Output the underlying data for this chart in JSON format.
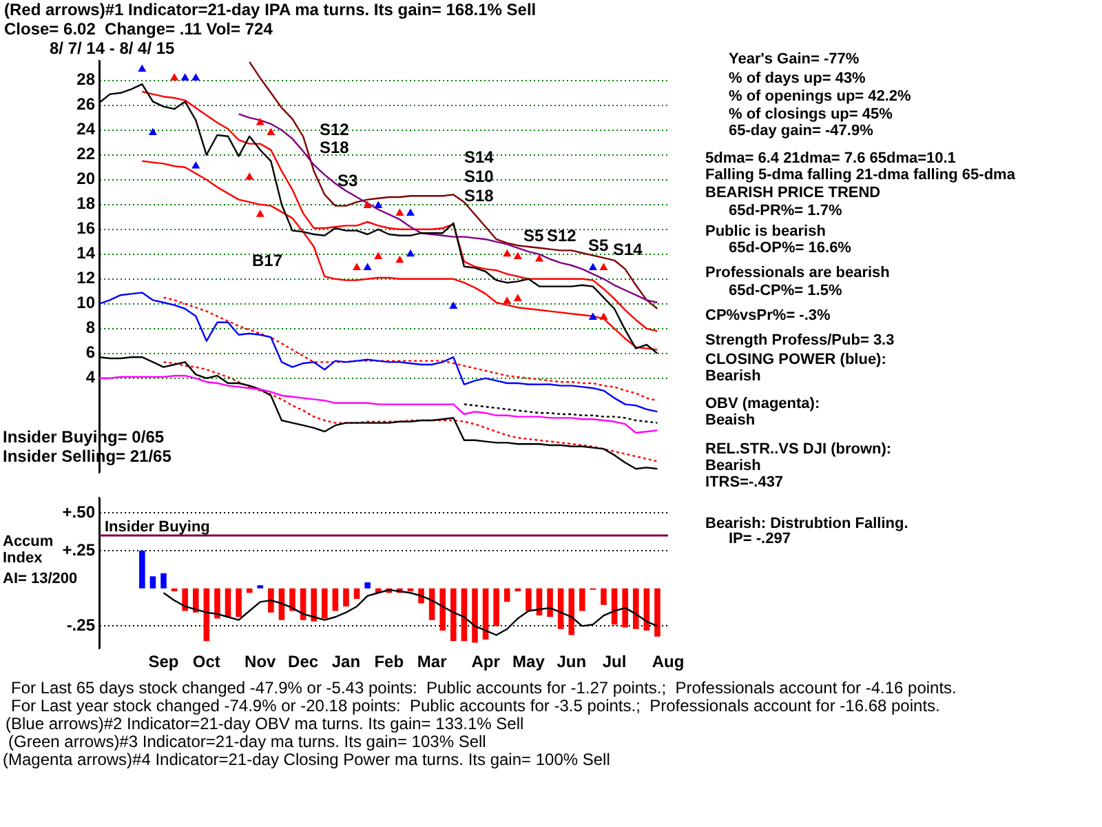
{
  "chart_data": [
    {
      "type": "line",
      "title": "(Red arrows)#1 Indicator=21-day IPA ma turns. Its gain= 168.1% Sell",
      "subtitle": "Close= 6.02  Change= .11 Vol= 724",
      "categories": [
        null,
        null,
        null,
        null,
        null,
        null,
        null,
        null,
        null,
        null,
        null,
        null,
        null,
        null,
        null,
        null,
        null,
        null,
        null,
        null,
        null,
        null,
        null,
        null,
        null,
        null,
        null,
        null,
        null,
        null,
        null,
        null,
        null,
        null,
        null,
        null,
        null,
        null,
        null,
        null,
        null,
        null,
        null,
        null,
        null,
        null,
        null,
        null,
        null,
        null,
        null,
        null,
        null,
        null
      ],
      "ylim": [
        -3.6,
        29.6
      ],
      "yticks": [
        4,
        6,
        8,
        10,
        12,
        14,
        16,
        18,
        20,
        22,
        24,
        26,
        28
      ],
      "grid": "y",
      "tick_labels": "y",
      "series": [
        {
          "color": "#000000",
          "values": [
            26.2,
            26.9,
            27.0,
            27.3,
            27.7,
            26.3,
            25.9,
            25.7,
            26.3,
            24.8,
            22.0,
            23.6,
            23.5,
            21.9,
            23.5,
            22.4,
            21.5,
            18.0,
            15.9,
            15.8,
            15.6,
            15.5,
            16.1,
            15.9,
            15.9,
            15.6,
            16.0,
            15.6,
            15.5,
            15.5,
            15.7,
            15.7,
            15.7,
            16.5,
            13.0,
            12.9,
            12.6,
            11.9,
            11.7,
            11.8,
            12.0,
            11.4,
            11.4,
            11.4,
            11.4,
            11.5,
            11.4,
            10.5,
            9.6,
            7.9,
            6.4,
            6.7,
            6.0,
            null
          ]
        },
        {
          "color": "#800080",
          "values": [
            null,
            null,
            null,
            null,
            null,
            null,
            null,
            null,
            null,
            null,
            null,
            null,
            null,
            25.3,
            25.0,
            24.8,
            24.5,
            24.0,
            23.3,
            22.3,
            21.2,
            20.4,
            19.7,
            19.1,
            18.6,
            18.1,
            17.6,
            17.2,
            16.8,
            16.2,
            15.7,
            15.6,
            15.5,
            15.4,
            15.4,
            15.3,
            15.2,
            15.0,
            14.8,
            14.5,
            14.2,
            14.0,
            13.6,
            13.3,
            13.1,
            12.8,
            12.4,
            12.0,
            11.5,
            11.1,
            10.7,
            10.3,
            10.1,
            null
          ]
        },
        {
          "color": "#ff0000",
          "values": [
            null,
            null,
            null,
            null,
            27.1,
            26.9,
            26.7,
            26.6,
            26.4,
            25.8,
            25.2,
            24.6,
            24.1,
            23.2,
            22.9,
            22.9,
            22.4,
            20.7,
            19.2,
            17.3,
            16.1,
            16.1,
            16.2,
            16.3,
            16.3,
            16.6,
            16.3,
            16.1,
            16.0,
            16.0,
            16.0,
            16.0,
            16.1,
            16.4,
            13.4,
            13.0,
            12.8,
            12.7,
            12.4,
            12.2,
            12.0,
            12.0,
            12.0,
            12.0,
            12.0,
            12.0,
            11.9,
            11.2,
            10.4,
            9.5,
            8.7,
            8.0,
            7.8,
            null
          ]
        },
        {
          "color": "#ff0000",
          "values": [
            null,
            null,
            null,
            null,
            21.5,
            21.4,
            21.3,
            21.1,
            21.0,
            20.5,
            20.0,
            19.4,
            18.9,
            18.4,
            18.2,
            18.0,
            17.9,
            17.4,
            16.9,
            15.8,
            14.6,
            12.2,
            12.0,
            11.9,
            11.9,
            12.0,
            12.1,
            12.1,
            12.0,
            12.0,
            12.0,
            12.0,
            12.0,
            12.0,
            11.7,
            11.3,
            10.8,
            10.1,
            9.9,
            9.7,
            9.6,
            9.5,
            9.4,
            9.3,
            9.2,
            9.1,
            9.0,
            8.8,
            8.0,
            7.2,
            6.5,
            6.4,
            6.3,
            null
          ]
        },
        {
          "color": "#800000",
          "values": [
            null,
            null,
            null,
            null,
            null,
            null,
            null,
            null,
            null,
            null,
            null,
            null,
            null,
            null,
            29.5,
            28.2,
            27.0,
            25.8,
            24.9,
            23.5,
            20.7,
            18.8,
            17.9,
            17.9,
            18.2,
            18.4,
            18.5,
            18.6,
            18.6,
            18.7,
            18.7,
            18.7,
            18.7,
            18.8,
            18.2,
            17.2,
            16.2,
            15.2,
            14.9,
            14.7,
            14.6,
            14.5,
            14.4,
            14.3,
            14.3,
            14.1,
            13.9,
            13.7,
            13.5,
            12.8,
            11.5,
            10.3,
            9.6,
            null
          ]
        },
        {
          "color": "#0000ff",
          "values": [
            10.0,
            10.3,
            10.7,
            10.8,
            10.9,
            10.3,
            10.1,
            9.9,
            9.6,
            9.0,
            7.0,
            8.5,
            8.5,
            7.5,
            7.6,
            7.5,
            7.3,
            5.3,
            4.9,
            5.2,
            5.3,
            4.7,
            5.4,
            5.3,
            5.4,
            5.5,
            5.4,
            5.3,
            5.3,
            5.2,
            5.1,
            5.1,
            5.3,
            5.7,
            3.5,
            3.8,
            4.0,
            3.8,
            3.6,
            3.6,
            3.5,
            3.5,
            3.5,
            3.4,
            3.4,
            3.3,
            3.2,
            3.0,
            2.4,
            1.9,
            1.8,
            1.5,
            1.3,
            null
          ]
        },
        {
          "color": "#ff0000",
          "line_style": "dotted",
          "values": [
            null,
            null,
            null,
            null,
            null,
            null,
            10.5,
            10.3,
            10.0,
            9.7,
            9.4,
            9.0,
            8.6,
            8.2,
            7.9,
            7.6,
            7.3,
            6.8,
            6.3,
            5.8,
            5.3,
            5.3,
            5.3,
            5.3,
            5.4,
            5.4,
            5.4,
            5.4,
            5.4,
            5.4,
            5.4,
            5.4,
            5.4,
            5.2,
            5.0,
            4.8,
            4.6,
            4.4,
            4.2,
            4.1,
            4.0,
            3.9,
            3.8,
            3.7,
            3.7,
            3.6,
            3.6,
            3.4,
            3.3,
            3.0,
            2.8,
            2.4,
            2.2,
            null
          ]
        },
        {
          "color": "#ff00ff",
          "values": [
            4.0,
            4.0,
            4.1,
            4.1,
            4.1,
            4.1,
            4.1,
            4.2,
            4.2,
            4.0,
            3.7,
            3.6,
            3.4,
            3.3,
            3.2,
            3.1,
            2.9,
            2.6,
            2.5,
            2.4,
            2.3,
            2.2,
            2.0,
            2.0,
            2.0,
            2.0,
            1.9,
            1.9,
            1.9,
            1.9,
            1.9,
            1.9,
            1.9,
            1.9,
            1.1,
            1.3,
            1.2,
            1.0,
            1.0,
            0.9,
            0.9,
            0.9,
            0.8,
            0.8,
            0.8,
            0.7,
            0.7,
            0.6,
            0.5,
            0.3,
            -0.4,
            -0.3,
            -0.2,
            null
          ]
        },
        {
          "color": "#000000",
          "line_style": "dotted",
          "values": [
            null,
            null,
            null,
            null,
            null,
            null,
            null,
            null,
            null,
            null,
            null,
            null,
            null,
            null,
            null,
            null,
            null,
            null,
            null,
            null,
            null,
            null,
            null,
            null,
            null,
            null,
            null,
            null,
            null,
            null,
            null,
            null,
            null,
            null,
            1.9,
            1.8,
            1.7,
            1.6,
            1.5,
            1.4,
            1.3,
            1.2,
            1.2,
            1.1,
            1.1,
            1.0,
            1.0,
            0.9,
            0.9,
            0.8,
            0.6,
            0.5,
            0.4,
            null
          ]
        },
        {
          "color": "#000000",
          "values": [
            5.7,
            5.6,
            5.6,
            5.7,
            5.7,
            5.3,
            4.9,
            5.1,
            5.3,
            4.3,
            4.0,
            4.2,
            3.6,
            3.6,
            3.4,
            3.1,
            2.6,
            0.6,
            0.4,
            0.2,
            0.0,
            -0.3,
            0.2,
            0.4,
            0.4,
            0.4,
            0.4,
            0.4,
            0.5,
            0.5,
            0.6,
            0.6,
            0.7,
            0.8,
            -1.0,
            -1.0,
            -1.1,
            -1.2,
            -1.2,
            -1.3,
            -1.3,
            -1.3,
            -1.4,
            -1.4,
            -1.5,
            -1.5,
            -1.6,
            -1.7,
            -2.2,
            -2.8,
            -3.3,
            -3.2,
            -3.3,
            null
          ]
        },
        {
          "color": "#ff0000",
          "line_style": "dotted",
          "values": [
            null,
            null,
            null,
            null,
            null,
            null,
            5.3,
            5.2,
            5.0,
            4.9,
            4.7,
            4.4,
            4.1,
            3.7,
            3.3,
            3.0,
            2.7,
            2.3,
            1.8,
            1.4,
            0.9,
            0.6,
            0.4,
            0.4,
            0.4,
            0.5,
            0.5,
            0.5,
            0.5,
            0.6,
            0.6,
            0.6,
            0.6,
            0.6,
            0.5,
            0.3,
            0.0,
            -0.3,
            -0.6,
            -0.8,
            -0.9,
            -1.0,
            -1.1,
            -1.2,
            -1.3,
            -1.4,
            -1.5,
            -1.7,
            -1.9,
            -2.1,
            -2.3,
            -2.5,
            -2.7,
            null
          ]
        },
        {
          "type": "scatter",
          "color": "#ff0000",
          "marker": "triangle",
          "values": [
            null,
            null,
            null,
            null,
            null,
            null,
            null,
            28.2,
            null,
            null,
            null,
            null,
            null,
            null,
            20.2,
            24.6,
            23.8,
            null,
            null,
            null,
            null,
            null,
            null,
            null,
            12.9,
            17.9,
            13.8,
            null,
            13.5,
            null,
            null,
            null,
            null,
            null,
            null,
            null,
            null,
            null,
            10.2,
            10.4,
            null,
            13.6,
            null,
            null,
            null,
            null,
            null,
            8.9,
            null,
            null,
            null,
            null,
            null,
            null
          ]
        },
        {
          "type": "scatter",
          "color": "#ff0000",
          "marker": "triangle",
          "values": [
            null,
            null,
            null,
            null,
            null,
            null,
            null,
            null,
            null,
            null,
            null,
            null,
            null,
            null,
            null,
            17.2,
            null,
            null,
            null,
            null,
            null,
            null,
            null,
            null,
            null,
            null,
            null,
            null,
            17.3,
            null,
            null,
            null,
            null,
            null,
            null,
            null,
            null,
            null,
            14.0,
            13.8,
            null,
            null,
            null,
            null,
            null,
            null,
            null,
            12.9,
            null,
            null,
            null,
            null,
            null,
            null
          ]
        },
        {
          "type": "scatter",
          "color": "#0000ff",
          "marker": "triangle",
          "values": [
            null,
            null,
            null,
            null,
            28.9,
            23.8,
            null,
            null,
            28.2,
            21.1,
            null,
            null,
            null,
            null,
            null,
            null,
            null,
            null,
            null,
            null,
            null,
            null,
            null,
            null,
            null,
            12.9,
            17.9,
            null,
            null,
            14.0,
            null,
            null,
            null,
            9.8,
            null,
            null,
            null,
            null,
            null,
            null,
            null,
            null,
            null,
            null,
            null,
            null,
            8.9,
            null,
            null,
            null,
            null,
            null,
            null,
            null
          ]
        },
        {
          "type": "scatter",
          "color": "#0000ff",
          "marker": "triangle",
          "values": [
            null,
            null,
            null,
            null,
            null,
            null,
            null,
            null,
            null,
            28.2,
            null,
            null,
            null,
            null,
            null,
            null,
            null,
            null,
            null,
            null,
            null,
            null,
            null,
            null,
            null,
            null,
            null,
            null,
            null,
            17.3,
            null,
            null,
            null,
            null,
            null,
            null,
            null,
            null,
            null,
            null,
            null,
            null,
            null,
            null,
            null,
            null,
            12.9,
            null,
            null,
            null,
            null,
            null,
            null,
            null
          ]
        }
      ],
      "annotations": [
        "8/ 7/ 14 - 8/ 4/ 15",
        "Year's Gain= -77%",
        "% of days up= 43%",
        "% of openings up= 42.2%",
        "% of closings up= 45%",
        "65-day gain= -47.9%",
        "5dma= 6.4 21dma= 7.6 65dma=10.1",
        "Falling 5-dma falling 21-dma falling 65-dma",
        "BEARISH PRICE TREND",
        "65d-PR%= 1.7%",
        "Public is bearish",
        "65d-OP%= 16.6%",
        "Professionals are bearish",
        "65d-CP%= 1.5%",
        "CP%vsPr%= -.3%",
        "Strength Profess/Pub= 3.3",
        "CLOSING POWER (blue):",
        "Bearish",
        "OBV (magenta):",
        "Beaish",
        "REL.STR..VS DJI (brown):",
        "Bearish",
        "ITRS=-.437",
        "Insider Buying= 0/65",
        "Insider Selling= 21/65",
        "S12",
        "S18",
        "B17",
        "S3",
        "S14",
        "S10",
        "S18",
        "S5",
        "S12",
        "S5",
        "S14"
      ]
    },
    {
      "type": "bar",
      "ylabel": "Accum Index",
      "categories": [
        null,
        null,
        null,
        null,
        null,
        null,
        "Sep",
        null,
        null,
        null,
        "Oct",
        null,
        null,
        null,
        null,
        "Nov",
        null,
        null,
        null,
        "Dec",
        null,
        null,
        null,
        "Jan",
        null,
        null,
        null,
        "Feb",
        null,
        null,
        null,
        "Mar",
        null,
        null,
        null,
        null,
        "Apr",
        null,
        null,
        null,
        "May",
        null,
        null,
        null,
        "Jun",
        null,
        null,
        null,
        "Jul",
        null,
        null,
        null,
        null,
        "Aug"
      ],
      "ylim": [
        -0.4,
        0.6
      ],
      "yticks": [
        {
          "value": 0.5,
          "label": "+.50"
        },
        {
          "value": 0.25,
          "label": "+.25"
        },
        {
          "value": -0.25,
          "label": "-.25"
        }
      ],
      "grid": "y",
      "ref_lines": [
        {
          "axis": "y",
          "value": 0.35,
          "label": "Insider Buying",
          "color": "#800040"
        }
      ],
      "series": [
        {
          "values": [
            null,
            null,
            null,
            null,
            0.25,
            0.08,
            0.1,
            -0.02,
            -0.15,
            -0.16,
            -0.35,
            -0.2,
            -0.19,
            -0.19,
            -0.03,
            0.02,
            -0.16,
            -0.21,
            -0.15,
            -0.21,
            -0.22,
            -0.2,
            -0.15,
            -0.12,
            -0.07,
            0.04,
            -0.03,
            -0.03,
            -0.03,
            -0.02,
            -0.1,
            -0.21,
            -0.28,
            -0.35,
            -0.35,
            -0.36,
            -0.34,
            -0.25,
            -0.09,
            -0.02,
            -0.15,
            -0.18,
            -0.19,
            -0.27,
            -0.31,
            -0.15,
            -0.01,
            -0.11,
            -0.24,
            -0.26,
            -0.27,
            -0.28,
            -0.32,
            null
          ],
          "colors": [
            null,
            null,
            null,
            null,
            "#0000ff",
            "#0000ff",
            "#0000ff",
            "#ff0000",
            "#ff0000",
            "#ff0000",
            "#ff0000",
            "#ff0000",
            "#ff0000",
            "#ff0000",
            "#ff0000",
            "#0000ff",
            "#ff0000",
            "#ff0000",
            "#ff0000",
            "#ff0000",
            "#ff0000",
            "#ff0000",
            "#ff0000",
            "#ff0000",
            "#ff0000",
            "#0000ff",
            "#ff0000",
            "#ff0000",
            "#ff0000",
            "#ff0000",
            "#ff0000",
            "#ff0000",
            "#ff0000",
            "#ff0000",
            "#ff0000",
            "#ff0000",
            "#ff0000",
            "#ff0000",
            "#ff0000",
            "#ff0000",
            "#ff0000",
            "#ff0000",
            "#ff0000",
            "#ff0000",
            "#ff0000",
            "#ff0000",
            "#ff0000",
            "#ff0000",
            "#ff0000",
            "#ff0000",
            "#ff0000",
            "#ff0000",
            "#ff0000",
            null
          ]
        },
        {
          "type": "line",
          "color": "#000000",
          "values": [
            null,
            null,
            null,
            null,
            null,
            null,
            -0.03,
            -0.08,
            -0.12,
            -0.14,
            -0.16,
            -0.17,
            -0.19,
            -0.21,
            -0.15,
            -0.09,
            -0.08,
            -0.1,
            -0.13,
            -0.17,
            -0.19,
            -0.21,
            -0.19,
            -0.16,
            -0.12,
            -0.05,
            -0.03,
            -0.01,
            -0.02,
            -0.03,
            -0.05,
            -0.08,
            -0.12,
            -0.16,
            -0.19,
            -0.25,
            -0.28,
            -0.31,
            -0.27,
            -0.2,
            -0.15,
            -0.14,
            -0.13,
            -0.16,
            -0.19,
            -0.25,
            -0.24,
            -0.18,
            -0.15,
            -0.13,
            -0.17,
            -0.22,
            -0.25,
            null
          ]
        }
      ],
      "annotations": [
        "Bearish: Distrubtion Falling.",
        "IP= -.297",
        "AI= 13/200",
        "For Last 65 days stock changed -47.9% or -5.43 points:  Public accounts for -1.27 points.;  Professionals account for -4.16 points.",
        "For Last year stock changed -74.9% or -20.18 points:  Public accounts for -3.5 points.;  Professionals account for -16.68 points.",
        "(Blue arrows)#2 Indicator=21-day OBV ma turns. Its gain= 133.1% Sell",
        "(Green arrows)#3 Indicator=21-day ma turns. Its gain= 103% Sell",
        "(Magenta arrows)#4 Indicator=21-day Closing Power ma turns. Its gain= 100% Sell"
      ]
    }
  ]
}
